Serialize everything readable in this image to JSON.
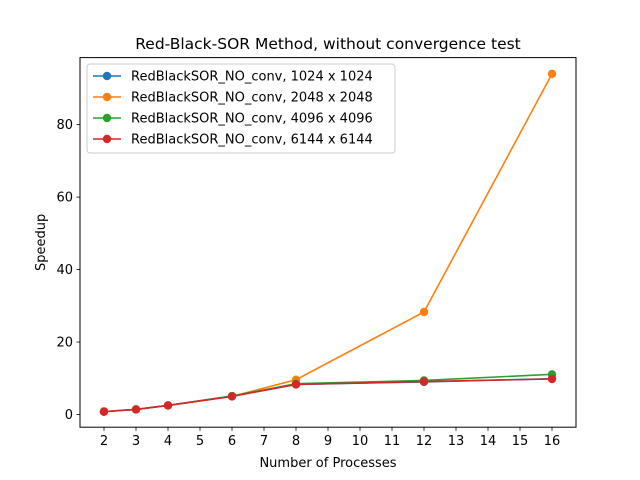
{
  "chart_data": {
    "type": "line",
    "title": "Red-Black-SOR Method, without convergence test",
    "xlabel": "Number of Processes",
    "ylabel": "Speedup",
    "xlim": [
      1.25,
      16.75
    ],
    "ylim": [
      -3.5,
      98.5
    ],
    "xticks": [
      "2",
      "3",
      "4",
      "5",
      "6",
      "7",
      "8",
      "9",
      "10",
      "11",
      "12",
      "13",
      "14",
      "15",
      "16"
    ],
    "yticks": [
      "0",
      "20",
      "40",
      "60",
      "80"
    ],
    "grid": false,
    "legend_position": "top-left",
    "series": [
      {
        "name": "RedBlackSOR_NO_conv, 1024 x 1024",
        "color": "#1f77b4",
        "x": [
          2,
          3,
          4,
          6,
          8,
          12,
          16
        ],
        "values": [
          0.8,
          1.4,
          2.5,
          5.1,
          8.3,
          9.0,
          9.9
        ]
      },
      {
        "name": "RedBlackSOR_NO_conv, 2048 x 2048",
        "color": "#ff7f0e",
        "x": [
          2,
          3,
          4,
          6,
          8,
          12,
          16
        ],
        "values": [
          0.8,
          1.4,
          2.5,
          5.0,
          9.6,
          28.3,
          94.0
        ]
      },
      {
        "name": "RedBlackSOR_NO_conv, 4096 x 4096",
        "color": "#2ca02c",
        "x": [
          2,
          3,
          4,
          6,
          8,
          12,
          16
        ],
        "values": [
          0.8,
          1.4,
          2.5,
          5.1,
          8.5,
          9.4,
          11.1
        ]
      },
      {
        "name": "RedBlackSOR_NO_conv, 6144 x 6144",
        "color": "#d62728",
        "x": [
          2,
          3,
          4,
          6,
          8,
          12,
          16
        ],
        "values": [
          0.8,
          1.4,
          2.5,
          5.0,
          8.3,
          9.1,
          9.8
        ]
      }
    ]
  }
}
